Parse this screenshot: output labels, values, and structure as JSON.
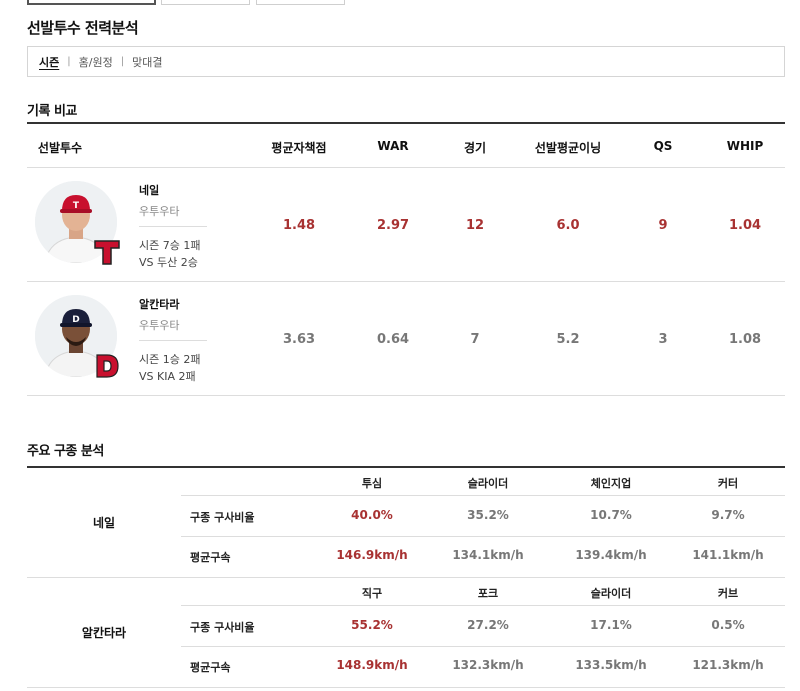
{
  "page": {
    "title": "선발투수 전력분석"
  },
  "subnav": {
    "items": [
      "시즌",
      "홈/원정",
      "맞대결"
    ]
  },
  "record": {
    "section_title": "기록 비교",
    "headers": [
      "선발투수",
      "평균자책점",
      "WAR",
      "경기",
      "선발평균이닝",
      "QS",
      "WHIP"
    ],
    "rows": [
      {
        "name": "네일",
        "throws": "우투우타",
        "season": "시즌 7승 1패",
        "vs": "VS 두산 2승",
        "values": [
          "1.48",
          "2.97",
          "12",
          "6.0",
          "9",
          "1.04"
        ],
        "highlight": true,
        "team_logo": "T",
        "team_color": "#c8102e"
      },
      {
        "name": "알칸타라",
        "throws": "우투우타",
        "season": "시즌 1승 2패",
        "vs": "VS KIA 2패",
        "values": [
          "3.63",
          "0.64",
          "7",
          "5.2",
          "3",
          "1.08"
        ],
        "highlight": false,
        "team_logo": "D",
        "team_color": "#c8102e"
      }
    ]
  },
  "pitch": {
    "section_title": "주요 구종 분석",
    "row_labels": [
      "구종 구사비율",
      "평균구속"
    ],
    "groups": [
      {
        "name": "네일",
        "pitches": [
          "투심",
          "슬라이더",
          "체인지업",
          "커터"
        ],
        "ratio": [
          "40.0%",
          "35.2%",
          "10.7%",
          "9.7%"
        ],
        "speed": [
          "146.9km/h",
          "134.1km/h",
          "139.4km/h",
          "141.1km/h"
        ]
      },
      {
        "name": "알칸타라",
        "pitches": [
          "직구",
          "포크",
          "슬라이더",
          "커브"
        ],
        "ratio": [
          "55.2%",
          "27.2%",
          "17.1%",
          "0.5%"
        ],
        "speed": [
          "148.9km/h",
          "132.3km/h",
          "133.5km/h",
          "121.3km/h"
        ]
      }
    ]
  },
  "colors": {
    "accent": "#a83232",
    "muted": "#777777"
  }
}
